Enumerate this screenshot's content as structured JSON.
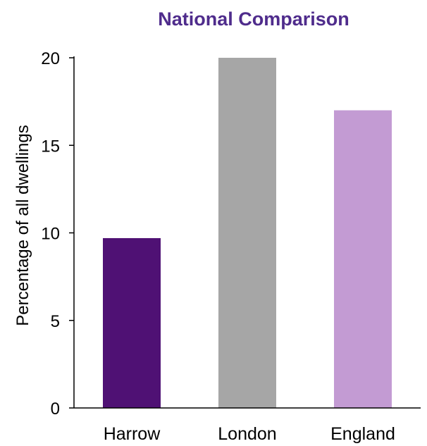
{
  "chart_data": {
    "type": "bar",
    "title": "National Comparison",
    "xlabel": "",
    "ylabel": "Percentage of all dwellings",
    "ylim": [
      0,
      20
    ],
    "yticks": [
      0,
      5,
      10,
      15,
      20
    ],
    "categories": [
      "Harrow",
      "London",
      "England"
    ],
    "values": [
      9.7,
      20.0,
      17.0
    ],
    "colors": [
      "#4f1174",
      "#a6a6a6",
      "#c39bd3"
    ],
    "grid": false,
    "legend": "none"
  }
}
